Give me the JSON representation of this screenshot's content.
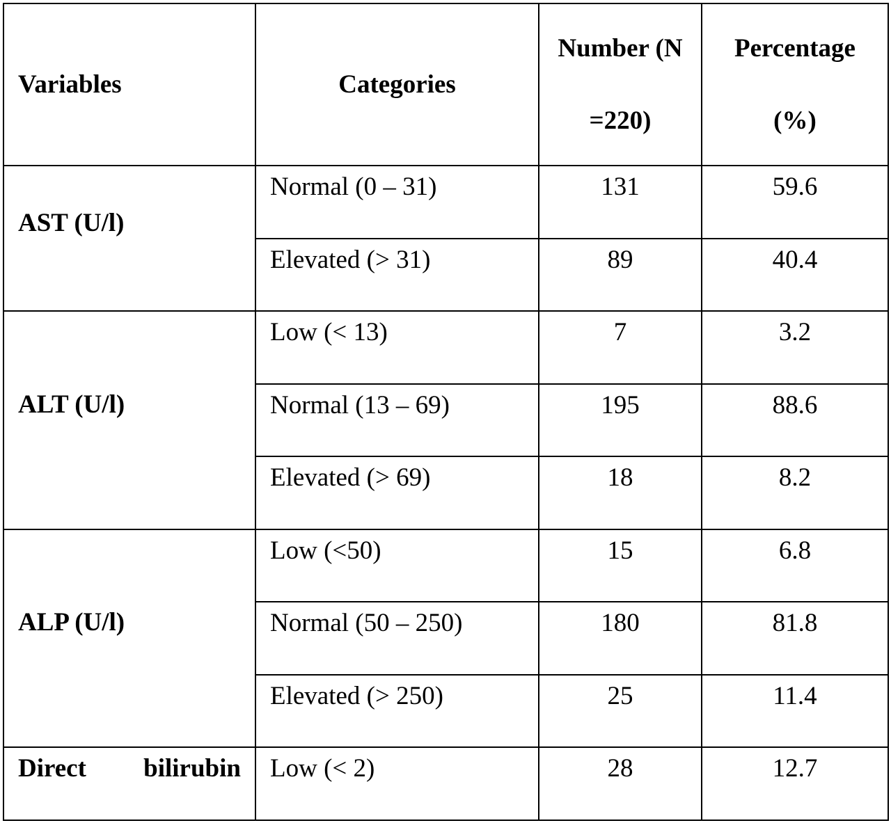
{
  "table": {
    "header": [
      "Variables",
      "Categories",
      "Number (N =220)",
      "Percentage (%)"
    ],
    "groups": [
      {
        "variable": "AST (U/l)",
        "rows": [
          {
            "category": "Normal (0 – 31)",
            "number": 131,
            "percentage": 59.6
          },
          {
            "category": "Elevated (> 31)",
            "number": 89,
            "percentage": 40.4
          }
        ]
      },
      {
        "variable": "ALT (U/l)",
        "rows": [
          {
            "category": "Low (< 13)",
            "number": 7,
            "percentage": 3.2
          },
          {
            "category": "Normal (13 – 69)",
            "number": 195,
            "percentage": 88.6
          },
          {
            "category": "Elevated (> 69)",
            "number": 18,
            "percentage": 8.2
          }
        ]
      },
      {
        "variable": "ALP (U/l)",
        "rows": [
          {
            "category": "Low (<50)",
            "number": 15,
            "percentage": 6.8
          },
          {
            "category": "Normal (50 – 250)",
            "number": 180,
            "percentage": 81.8
          },
          {
            "category": "Elevated (> 250)",
            "number": 25,
            "percentage": 11.4
          }
        ]
      },
      {
        "variable": "Direct bilirubin",
        "rows": [
          {
            "category": "Low (< 2)",
            "number": 28,
            "percentage": 12.7
          }
        ]
      }
    ]
  }
}
